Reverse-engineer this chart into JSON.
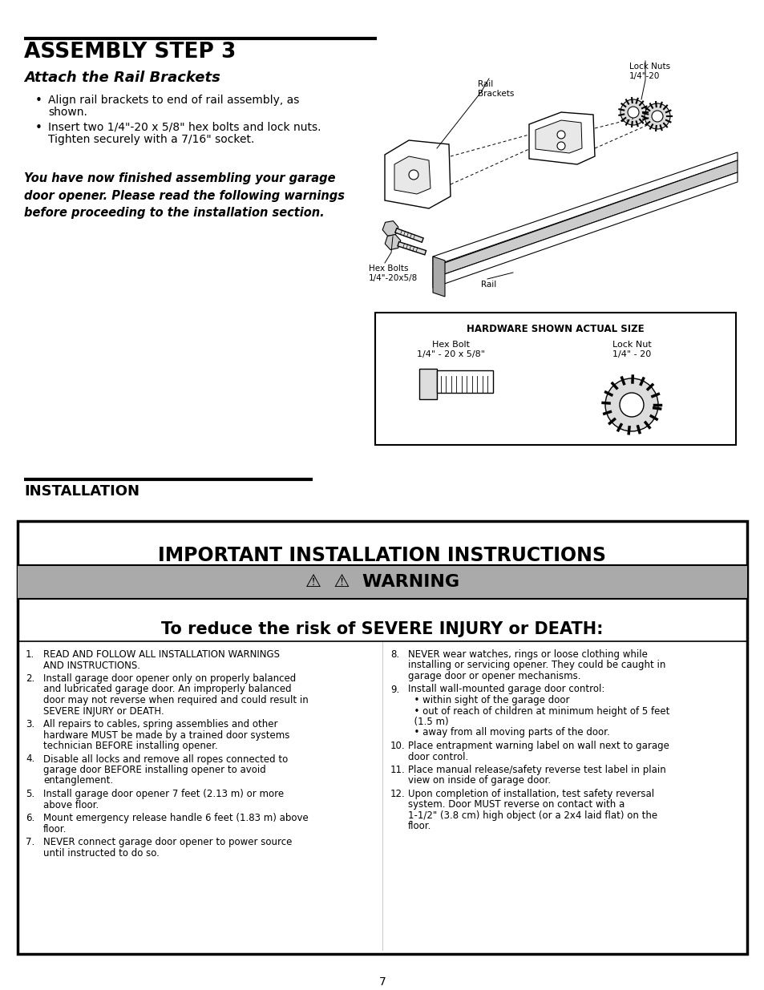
{
  "page_bg": "#ffffff",
  "assembly_title": "ASSEMBLY STEP 3",
  "assembly_subtitle": "Attach the Rail Brackets",
  "bullet1_dot": "•",
  "bullet1": "Align rail brackets to end of rail assembly, as shown.",
  "bullet2": "Insert two 1/4\"-20 x 5/8\" hex bolts and lock nuts.\n    Tighten securely with a 7/16\" socket.",
  "italic_text": "You have now finished assembling your garage\ndoor opener. Please read the following warnings\nbefore proceeding to the installation section.",
  "installation_title": "INSTALLATION",
  "important_title": "IMPORTANT INSTALLATION INSTRUCTIONS",
  "warning_title": "⚠  ⚠  WARNING",
  "warning_bg": "#aaaaaa",
  "reduce_risk": "To reduce the risk of SEVERE INJURY or DEATH:",
  "left_col_items": [
    {
      "num": "1.",
      "text": "READ AND FOLLOW ALL INSTALLATION WARNINGS\nAND INSTRUCTIONS."
    },
    {
      "num": "2.",
      "text": "Install garage door opener only on properly balanced\nand lubricated garage door. An improperly balanced\ndoor may not reverse when required and could result in\nSEVERE INJURY or DEATH."
    },
    {
      "num": "3.",
      "text": "All repairs to cables, spring assemblies and other\nhardware MUST be made by a trained door systems\ntechnician BEFORE installing opener."
    },
    {
      "num": "4.",
      "text": "Disable all locks and remove all ropes connected to\ngarage door BEFORE installing opener to avoid\nentanglement."
    },
    {
      "num": "5.",
      "text": "Install garage door opener 7 feet (2.13 m) or more\nabove floor."
    },
    {
      "num": "6.",
      "text": "Mount emergency release handle 6 feet (1.83 m) above\nfloor."
    },
    {
      "num": "7.",
      "text": "NEVER connect garage door opener to power source\nuntil instructed to do so."
    }
  ],
  "right_col_items": [
    {
      "num": "8.",
      "text": "NEVER wear watches, rings or loose clothing while\ninstalling or servicing opener. They could be caught in\ngarage door or opener mechanisms."
    },
    {
      "num": "9.",
      "text": "Install wall-mounted garage door control:\n  • within sight of the garage door\n  • out of reach of children at minimum height of 5 feet\n  (1.5 m)\n  • away from all moving parts of the door."
    },
    {
      "num": "10.",
      "text": "Place entrapment warning label on wall next to garage\ndoor control."
    },
    {
      "num": "11.",
      "text": "Place manual release/safety reverse test label in plain\nview on inside of garage door."
    },
    {
      "num": "12.",
      "text": "Upon completion of installation, test safety reversal\nsystem. Door MUST reverse on contact with a\n1-1/2\" (3.8 cm) high object (or a 2x4 laid flat) on the\nfloor."
    }
  ],
  "page_number": "7",
  "hardware_box_title": "HARDWARE SHOWN ACTUAL SIZE",
  "hex_bolt_label1": "Hex Bolt",
  "hex_bolt_label2": "1/4\" - 20 x 5/8\"",
  "lock_nut_label1": "Lock Nut",
  "lock_nut_label2": "1/4\" - 20",
  "diag_rail_label": "Rail",
  "diag_rail_brackets_label": "Rail\nBrackets",
  "diag_lock_nuts_label": "Lock Nuts\n1/4\"-20",
  "diag_hex_bolts_label": "Hex Bolts\n1/4\"-20x5/8"
}
